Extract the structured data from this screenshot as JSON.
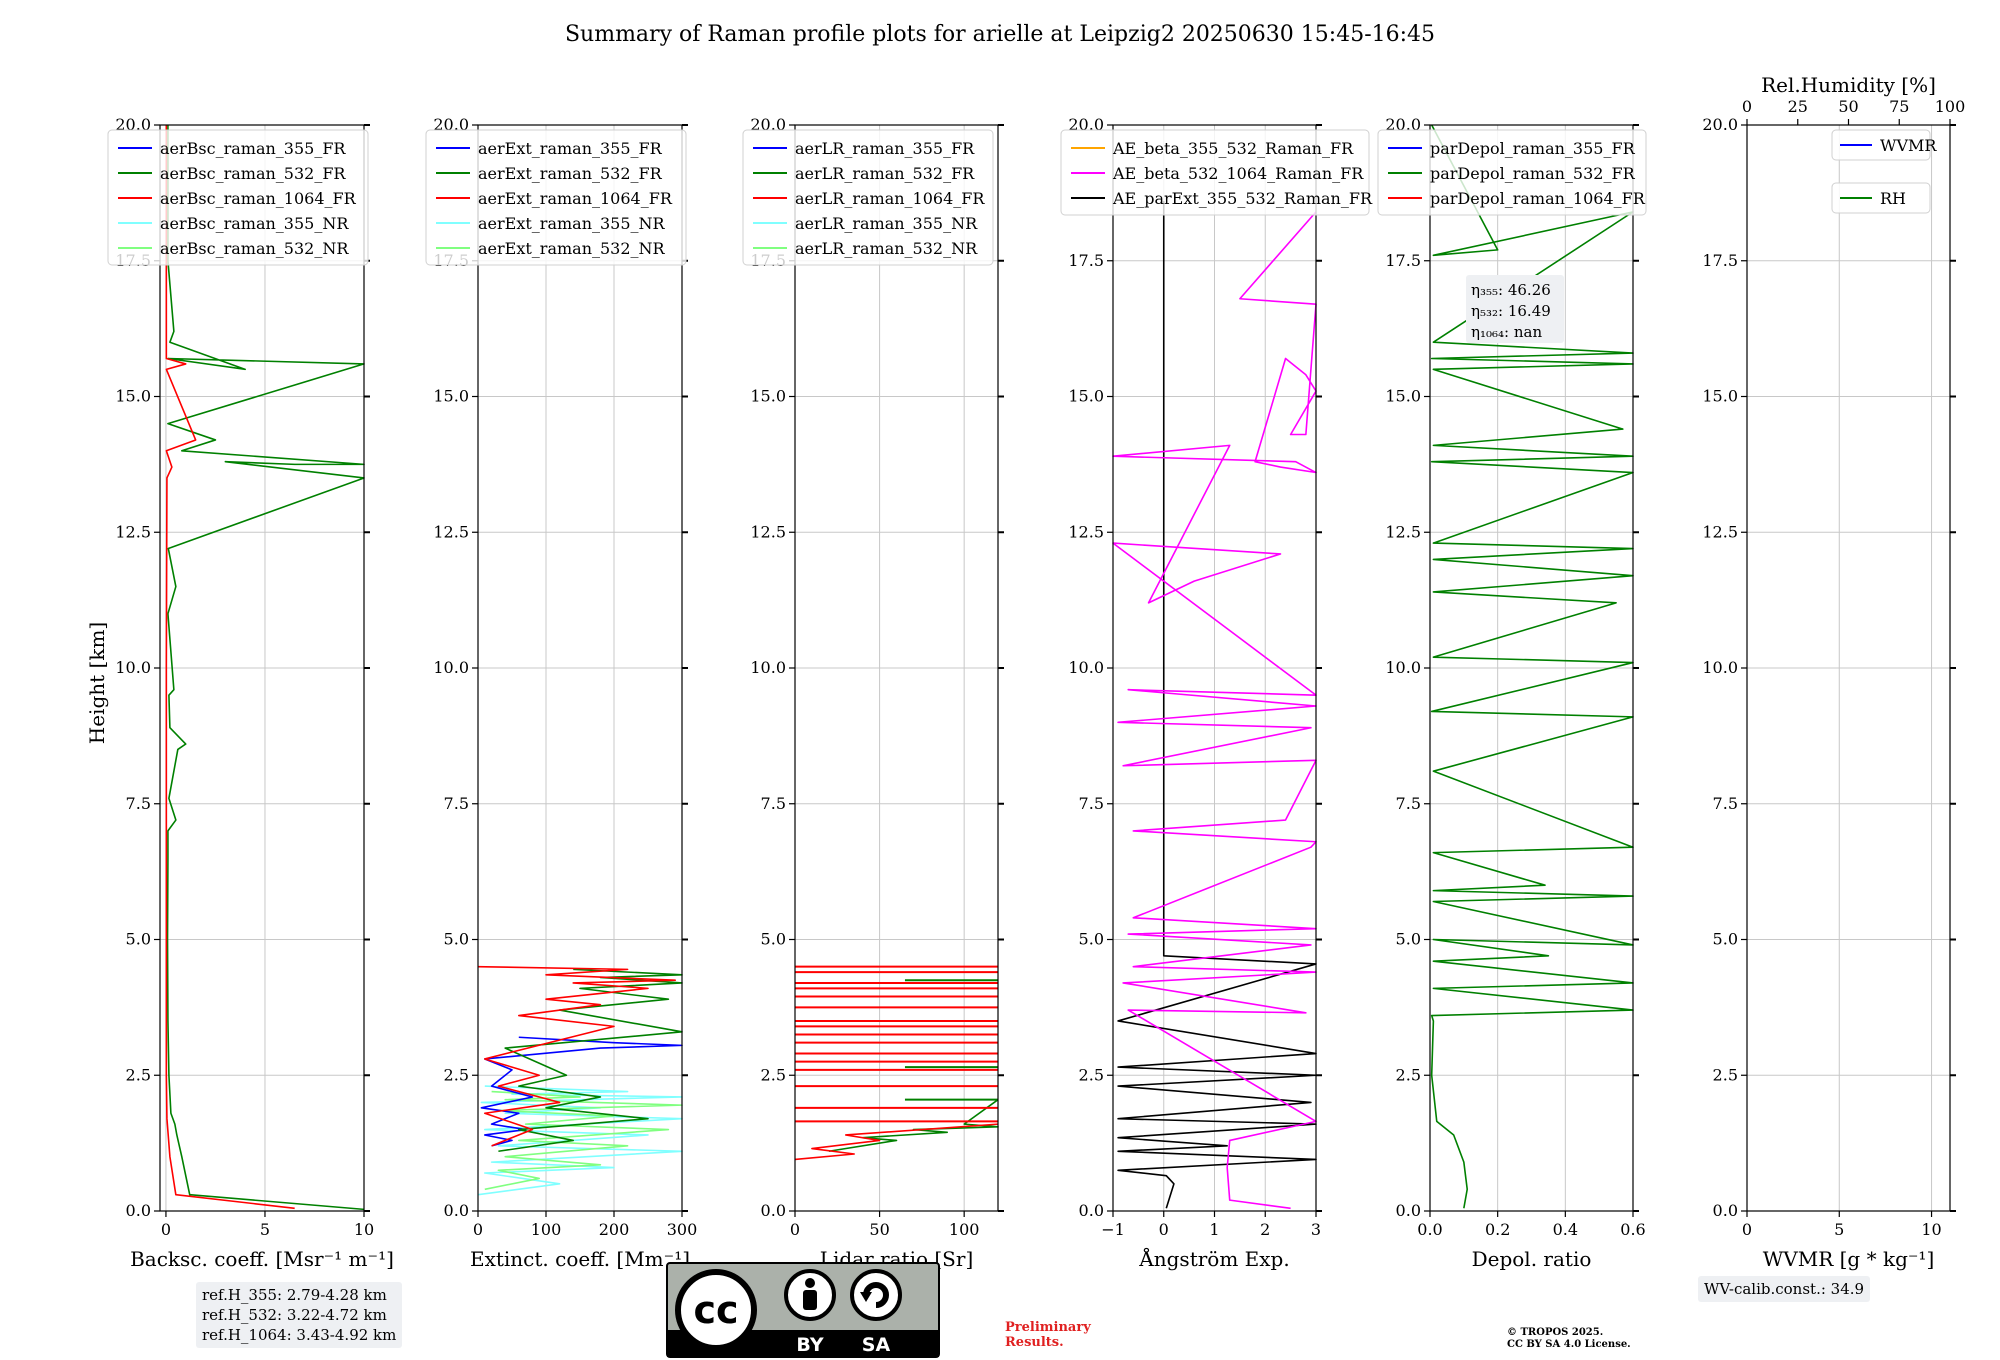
{
  "figure_title": "Summary of Raman profile plots for arielle at Leipzig2 20250630 15:45-16:45",
  "y_axis_label": "Height [km]",
  "chart_data": [
    {
      "type": "line",
      "name": "backscatter",
      "xlabel": "Backsc. coeff. [Msr⁻¹ m⁻¹]",
      "xlim": [
        -0.3,
        10
      ],
      "ylim": [
        0,
        20
      ],
      "xticks": [
        0,
        5,
        10
      ],
      "xtick_labels": [
        "0",
        "5",
        "10"
      ],
      "yticks": [
        0,
        2.5,
        5,
        7.5,
        10,
        12.5,
        15,
        17.5,
        20
      ],
      "ytick_labels": [
        "0.0",
        "2.5",
        "5.0",
        "7.5",
        "10.0",
        "12.5",
        "15.0",
        "17.5",
        "20.0"
      ],
      "legend": {
        "position": "top-left",
        "entries": [
          {
            "label": "aerBsc_raman_355_FR",
            "color": "#0000ff"
          },
          {
            "label": "aerBsc_raman_532_FR",
            "color": "#008000"
          },
          {
            "label": "aerBsc_raman_1064_FR",
            "color": "#ff0000"
          },
          {
            "label": "aerBsc_raman_355_NR",
            "color": "#80ffff"
          },
          {
            "label": "aerBsc_raman_532_NR",
            "color": "#80ff80"
          }
        ]
      },
      "series": [
        {
          "name": "aerBsc_raman_532_FR",
          "color": "#008000",
          "x": [
            10,
            1.2,
            0.8,
            0.55,
            0.45,
            0.25,
            0.15,
            0.1,
            0.08,
            0.1,
            0.1,
            0.5,
            0.15,
            0.6,
            1.0,
            0.2,
            0.15,
            0.4,
            0.1,
            0.5,
            0.12,
            10,
            3.0,
            6.5,
            10,
            0.8,
            2.5,
            0.1,
            10,
            0.1,
            4.0,
            0.2,
            0.4,
            0.1,
            0.1
          ],
          "y": [
            0.03,
            0.3,
            1.0,
            1.4,
            1.6,
            1.8,
            2.5,
            3.5,
            5.0,
            6.5,
            7.0,
            7.2,
            7.6,
            8.5,
            8.6,
            8.9,
            9.5,
            9.6,
            11.0,
            11.5,
            12.2,
            13.5,
            13.8,
            13.75,
            13.75,
            14.0,
            14.2,
            14.5,
            15.6,
            15.7,
            15.5,
            16.0,
            16.2,
            17.5,
            20
          ]
        },
        {
          "name": "aerBsc_raman_1064_FR",
          "color": "#ff0000",
          "x": [
            6.5,
            0.5,
            0.2,
            0.05,
            0.02,
            0.02,
            0.02,
            0.05,
            0.3,
            0.02,
            1.5,
            0.02,
            1.0,
            0.02,
            0.02
          ],
          "y": [
            0.05,
            0.3,
            1.0,
            1.7,
            2.5,
            5.0,
            10,
            13.5,
            13.7,
            14.0,
            14.2,
            15.5,
            15.6,
            15.7,
            20
          ]
        }
      ],
      "annotation": {
        "lines": [
          "ref.H_355: 2.79-4.28 km",
          "ref.H_532: 3.22-4.72 km",
          "ref.H_1064: 3.43-4.92 km"
        ]
      }
    },
    {
      "type": "line",
      "name": "extinction",
      "xlabel": "Extinct. coeff. [Mm⁻¹]",
      "xlim": [
        0,
        300
      ],
      "ylim": [
        0,
        20
      ],
      "xticks": [
        0,
        100,
        200,
        300
      ],
      "xtick_labels": [
        "0",
        "100",
        "200",
        "300"
      ],
      "yticks": [
        0,
        2.5,
        5,
        7.5,
        10,
        12.5,
        15,
        17.5,
        20
      ],
      "ytick_labels": [
        "0.0",
        "2.5",
        "5.0",
        "7.5",
        "10.0",
        "12.5",
        "15.0",
        "17.5",
        "20.0"
      ],
      "legend": {
        "position": "top-left",
        "entries": [
          {
            "label": "aerExt_raman_355_FR",
            "color": "#0000ff"
          },
          {
            "label": "aerExt_raman_532_FR",
            "color": "#008000"
          },
          {
            "label": "aerExt_raman_1064_FR",
            "color": "#ff0000"
          },
          {
            "label": "aerExt_raman_355_NR",
            "color": "#80ffff"
          },
          {
            "label": "aerExt_raman_532_NR",
            "color": "#80ff80"
          }
        ]
      },
      "series": [
        {
          "name": "aerExt_raman_355_NR",
          "color": "#80ffff",
          "x": [
            0,
            120,
            10,
            200,
            20,
            300,
            30,
            250,
            10,
            300,
            40,
            180,
            5,
            300,
            50,
            220,
            10
          ],
          "y": [
            0.3,
            0.5,
            0.7,
            0.8,
            0.9,
            1.1,
            1.2,
            1.4,
            1.5,
            1.7,
            1.8,
            1.9,
            2.0,
            2.1,
            2.15,
            2.2,
            2.3
          ]
        },
        {
          "name": "aerExt_raman_532_NR",
          "color": "#80ff80",
          "x": [
            10,
            90,
            30,
            180,
            40,
            220,
            60,
            280,
            70,
            200,
            30,
            300,
            40,
            150,
            20
          ],
          "y": [
            0.4,
            0.6,
            0.75,
            0.85,
            1.0,
            1.2,
            1.3,
            1.5,
            1.6,
            1.75,
            1.85,
            1.95,
            2.05,
            2.1,
            2.2
          ]
        },
        {
          "name": "aerExt_raman_355_FR",
          "color": "#0000ff",
          "x": [
            20,
            50,
            10,
            70,
            20,
            60,
            5,
            80,
            20,
            50,
            10,
            180,
            300,
            200,
            60
          ],
          "y": [
            1.2,
            1.3,
            1.4,
            1.5,
            1.6,
            1.8,
            1.9,
            2.1,
            2.3,
            2.6,
            2.8,
            3.0,
            3.05,
            3.1,
            3.2
          ]
        },
        {
          "name": "aerExt_raman_532_FR",
          "color": "#008000",
          "x": [
            30,
            140,
            60,
            250,
            100,
            180,
            60,
            130,
            40,
            300,
            120,
            280,
            150,
            300,
            180,
            300,
            140
          ],
          "y": [
            1.1,
            1.3,
            1.5,
            1.7,
            1.9,
            2.1,
            2.3,
            2.5,
            3.0,
            3.3,
            3.7,
            3.9,
            4.1,
            4.2,
            4.3,
            4.35,
            4.45
          ]
        },
        {
          "name": "aerExt_raman_1064_FR",
          "color": "#ff0000",
          "x": [
            20,
            80,
            10,
            120,
            30,
            90,
            10,
            200,
            60,
            180,
            100,
            250,
            140,
            290,
            100,
            220,
            0
          ],
          "y": [
            1.2,
            1.5,
            1.8,
            2.0,
            2.3,
            2.5,
            2.8,
            3.4,
            3.6,
            3.8,
            3.9,
            4.1,
            4.2,
            4.25,
            4.35,
            4.45,
            4.5
          ]
        }
      ]
    },
    {
      "type": "line",
      "name": "lidar_ratio",
      "xlabel": "Lidar ratio [Sr]",
      "xlim": [
        0,
        120
      ],
      "ylim": [
        0,
        20
      ],
      "xticks": [
        0,
        50,
        100
      ],
      "xtick_labels": [
        "0",
        "50",
        "100"
      ],
      "yticks": [
        0,
        2.5,
        5,
        7.5,
        10,
        12.5,
        15,
        17.5,
        20
      ],
      "ytick_labels": [
        "0.0",
        "2.5",
        "5.0",
        "7.5",
        "10.0",
        "12.5",
        "15.0",
        "17.5",
        "20.0"
      ],
      "legend": {
        "position": "top-left",
        "entries": [
          {
            "label": "aerLR_raman_355_FR",
            "color": "#0000ff"
          },
          {
            "label": "aerLR_raman_532_FR",
            "color": "#008000"
          },
          {
            "label": "aerLR_raman_1064_FR",
            "color": "#ff0000"
          },
          {
            "label": "aerLR_raman_355_NR",
            "color": "#80ffff"
          },
          {
            "label": "aerLR_raman_532_NR",
            "color": "#80ff80"
          }
        ]
      },
      "series": [
        {
          "name": "aerLR_raman_532_FR",
          "color": "#008000",
          "x": [
            20,
            60,
            40,
            90,
            70,
            120,
            100,
            120
          ],
          "y": [
            1.1,
            1.3,
            1.35,
            1.45,
            1.5,
            1.55,
            1.6,
            2.05
          ]
        },
        {
          "name": "aerLR_raman_1064_FR",
          "color": "#ff0000",
          "x": [
            0,
            35,
            10,
            50,
            30,
            120
          ],
          "y": [
            0.95,
            1.05,
            1.15,
            1.3,
            1.4,
            1.6
          ]
        }
      ],
      "hlines_1064": [
        1.65,
        1.9,
        2.3,
        2.6,
        2.75,
        2.9,
        3.1,
        3.25,
        3.4,
        3.5,
        3.75,
        3.95,
        4.1,
        4.2,
        4.4,
        4.5
      ],
      "hlines_532": [
        2.05,
        2.65,
        4.25
      ]
    },
    {
      "type": "line",
      "name": "angstrom",
      "xlabel": "Ångström Exp.",
      "xlim": [
        -1,
        3
      ],
      "ylim": [
        0,
        20
      ],
      "xticks": [
        -1,
        0,
        1,
        2,
        3
      ],
      "xtick_labels": [
        "−1",
        "0",
        "1",
        "2",
        "3"
      ],
      "yticks": [
        0,
        2.5,
        5,
        7.5,
        10,
        12.5,
        15,
        17.5,
        20
      ],
      "ytick_labels": [
        "0.0",
        "2.5",
        "5.0",
        "7.5",
        "10.0",
        "12.5",
        "15.0",
        "17.5",
        "20.0"
      ],
      "legend": {
        "position": "top-left",
        "entries": [
          {
            "label": "AE_beta_355_532_Raman_FR",
            "color": "#ffa500"
          },
          {
            "label": "AE_beta_532_1064_Raman_FR",
            "color": "#ff00ff"
          },
          {
            "label": "AE_parExt_355_532_Raman_FR",
            "color": "#000000"
          }
        ]
      },
      "series": [
        {
          "name": "AE_parExt_355_532_Raman_FR",
          "color": "#000000",
          "x": [
            0.05,
            0.2,
            0.05,
            -0.9,
            3,
            -0.9,
            1.25,
            -0.9,
            3,
            -0.9,
            2.9,
            -0.9,
            3,
            -0.9,
            3,
            -0.9,
            3,
            0,
            0,
            0
          ],
          "y": [
            0.05,
            0.5,
            0.65,
            0.75,
            0.95,
            1.1,
            1.2,
            1.35,
            1.6,
            1.7,
            2.0,
            2.3,
            2.5,
            2.65,
            2.9,
            3.5,
            4.55,
            4.7,
            17.0,
            18.6
          ]
        },
        {
          "name": "AE_beta_532_1064_Raman_FR",
          "color": "#ff00ff",
          "x": [
            2.5,
            1.3,
            1.25,
            1.3,
            3,
            -0.7,
            2.8,
            -0.8,
            3,
            -0.6,
            2.9,
            -0.7,
            3,
            -0.6,
            2.9,
            3,
            -0.6,
            2.4,
            3,
            -0.8,
            2.9,
            -0.9,
            3,
            -0.7,
            3,
            -1,
            2.3,
            0.6,
            -0.3,
            1.3,
            -1,
            2.6,
            3,
            2.3,
            1.8,
            2.4,
            2.8,
            3,
            2.5,
            2.8,
            3,
            1.5,
            3
          ],
          "y": [
            0.05,
            0.2,
            0.8,
            1.3,
            1.65,
            3.7,
            3.65,
            4.2,
            4.4,
            4.5,
            4.9,
            5.1,
            5.2,
            5.4,
            6.7,
            6.8,
            7.0,
            7.2,
            8.3,
            8.2,
            8.9,
            9.0,
            9.3,
            9.6,
            9.5,
            12.3,
            12.1,
            11.6,
            11.2,
            14.1,
            13.9,
            13.8,
            13.6,
            13.7,
            13.8,
            15.7,
            15.4,
            15.1,
            14.3,
            14.3,
            16.7,
            16.8,
            18.4
          ]
        }
      ]
    },
    {
      "type": "line",
      "name": "depolarization",
      "xlabel": "Depol. ratio",
      "xlim": [
        0,
        0.6
      ],
      "ylim": [
        0,
        20
      ],
      "xticks": [
        0,
        0.2,
        0.4,
        0.6
      ],
      "xtick_labels": [
        "0.0",
        "0.2",
        "0.4",
        "0.6"
      ],
      "yticks": [
        0,
        2.5,
        5,
        7.5,
        10,
        12.5,
        15,
        17.5,
        20
      ],
      "ytick_labels": [
        "0.0",
        "2.5",
        "5.0",
        "7.5",
        "10.0",
        "12.5",
        "15.0",
        "17.5",
        "20.0"
      ],
      "legend": {
        "position": "top-left",
        "entries": [
          {
            "label": "parDepol_raman_355_FR",
            "color": "#0000ff"
          },
          {
            "label": "parDepol_raman_532_FR",
            "color": "#008000"
          },
          {
            "label": "parDepol_raman_1064_FR",
            "color": "#ff0000"
          }
        ]
      },
      "series": [
        {
          "name": "parDepol_raman_532_FR",
          "color": "#008000",
          "x": [
            0.1,
            0.11,
            0.1,
            0.07,
            0.02,
            0.005,
            0.01,
            0.005,
            0.6,
            0.01,
            0.6,
            0.01,
            0.35,
            0.01,
            0.6,
            0.01,
            0.6,
            0.01,
            0.34,
            0.01,
            0.6,
            0.01,
            0.6,
            0.005,
            0.6,
            0.01,
            0.55,
            0.01,
            0.6,
            0.01,
            0.6,
            0.01,
            0.6,
            0.005,
            0.6,
            0.01,
            0.57,
            0.01,
            0.6,
            0.005,
            0.6,
            0.01,
            0.6,
            0.01,
            0.2,
            0.005
          ],
          "y": [
            0.05,
            0.4,
            0.9,
            1.4,
            1.65,
            2.5,
            3.5,
            3.6,
            3.7,
            4.1,
            4.2,
            4.6,
            4.7,
            5.0,
            4.9,
            5.7,
            5.8,
            5.9,
            6.0,
            6.6,
            6.7,
            8.1,
            9.1,
            9.2,
            10.1,
            10.2,
            11.2,
            11.4,
            11.7,
            12.0,
            12.2,
            12.3,
            13.6,
            13.8,
            13.9,
            14.1,
            14.4,
            15.5,
            15.6,
            15.7,
            15.8,
            16.0,
            18.4,
            17.6,
            17.7,
            20
          ]
        }
      ],
      "annotation": {
        "lines": [
          "η₃₅₅: 46.26",
          "η₅₃₂: 16.49",
          "η₁₀₆₄: nan"
        ]
      }
    },
    {
      "type": "line",
      "name": "water_vapor",
      "xlabel": "WVMR [g * kg⁻¹]",
      "top_xlabel": "Rel.Humidity [%]",
      "xlim": [
        0,
        11
      ],
      "ylim": [
        0,
        20
      ],
      "xticks": [
        0,
        5,
        10
      ],
      "xtick_labels": [
        "0",
        "5",
        "10"
      ],
      "top_xticks": [
        0,
        25,
        50,
        75,
        100
      ],
      "top_xtick_labels": [
        "0",
        "25",
        "50",
        "75",
        "100"
      ],
      "yticks": [
        0,
        2.5,
        5,
        7.5,
        10,
        12.5,
        15,
        17.5,
        20
      ],
      "ytick_labels": [
        "0.0",
        "2.5",
        "5.0",
        "7.5",
        "10.0",
        "12.5",
        "15.0",
        "17.5",
        "20.0"
      ],
      "legend": {
        "position": "top-right",
        "entries": [
          {
            "label": "WVMR",
            "color": "#0000ff"
          },
          {
            "label": "RH",
            "color": "#008000"
          }
        ]
      },
      "series": [],
      "annotation": {
        "lines": [
          "WV-calib.const.: 34.9"
        ]
      }
    }
  ],
  "footer": {
    "cc_letters": "cc",
    "cc_by": "BY",
    "cc_sa": "SA",
    "preliminary_line1": "Preliminary",
    "preliminary_line2": "Results.",
    "copyright_line1": "© TROPOS 2025.",
    "copyright_line2": "CC BY SA 4.0 License."
  }
}
